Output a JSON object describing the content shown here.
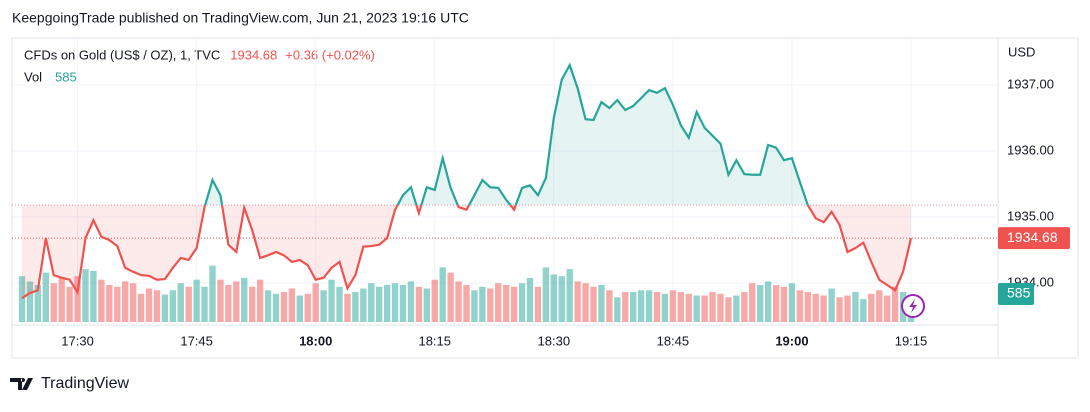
{
  "header": {
    "title": "KeepgoingTrade published on TradingView.com, Jun 21, 2023 19:16 UTC"
  },
  "chart_data": {
    "type": "line",
    "symbol": "CFDs on Gold (US$ / OZ), 1, TVC",
    "change": "+0.36 (+0.02%)",
    "currency": "USD",
    "categories": [
      null,
      null,
      null,
      null,
      null,
      null,
      null,
      "17:30",
      null,
      null,
      null,
      null,
      null,
      null,
      null,
      null,
      null,
      null,
      null,
      null,
      null,
      null,
      "17:45",
      null,
      null,
      null,
      null,
      null,
      null,
      null,
      null,
      null,
      null,
      null,
      null,
      null,
      null,
      "18:00",
      null,
      null,
      null,
      null,
      null,
      null,
      null,
      null,
      null,
      null,
      null,
      null,
      null,
      null,
      "18:15",
      null,
      null,
      null,
      null,
      null,
      null,
      null,
      null,
      null,
      null,
      null,
      null,
      null,
      null,
      "18:30",
      null,
      null,
      null,
      null,
      null,
      null,
      null,
      null,
      null,
      null,
      null,
      null,
      null,
      null,
      "18:45",
      null,
      null,
      null,
      null,
      null,
      null,
      null,
      null,
      null,
      null,
      null,
      null,
      null,
      null,
      "19:00",
      null,
      null,
      null,
      null,
      null,
      null,
      null,
      null,
      null,
      null,
      null,
      null,
      null,
      null,
      "19:15"
    ],
    "series": [
      {
        "name": "CFDs on Gold (US$ / OZ), 1, TVC",
        "color": "#26a69a",
        "down_color": "#ef5350",
        "values": [
          1933.77,
          1933.85,
          1933.89,
          1934.68,
          1934.12,
          1934.08,
          1934.05,
          1933.86,
          1934.68,
          1934.95,
          1934.7,
          1934.65,
          1934.56,
          1934.23,
          1934.17,
          1934.12,
          1934.11,
          1934.05,
          1934.06,
          1934.23,
          1934.38,
          1934.35,
          1934.53,
          1935.15,
          1935.56,
          1935.33,
          1934.58,
          1934.47,
          1935.14,
          1934.8,
          1934.38,
          1934.42,
          1934.47,
          1934.42,
          1934.32,
          1934.35,
          1934.27,
          1934.05,
          1934.08,
          1934.23,
          1934.32,
          1933.92,
          1934.12,
          1934.55,
          1934.56,
          1934.58,
          1934.68,
          1935.11,
          1935.33,
          1935.45,
          1935.06,
          1935.45,
          1935.41,
          1935.89,
          1935.44,
          1935.15,
          1935.11,
          1935.33,
          1935.56,
          1935.45,
          1935.44,
          1935.26,
          1935.11,
          1935.44,
          1935.48,
          1935.33,
          1935.59,
          1936.5,
          1937.08,
          1937.3,
          1936.95,
          1936.48,
          1936.47,
          1936.74,
          1936.65,
          1936.77,
          1936.62,
          1936.68,
          1936.8,
          1936.92,
          1936.88,
          1936.95,
          1936.7,
          1936.39,
          1936.2,
          1936.59,
          1936.35,
          1936.23,
          1936.11,
          1935.64,
          1935.86,
          1935.65,
          1935.64,
          1935.64,
          1936.09,
          1936.05,
          1935.86,
          1935.89,
          1935.53,
          1935.18,
          1934.98,
          1934.92,
          1935.08,
          1934.88,
          1934.47,
          1934.53,
          1934.61,
          1934.32,
          1934.05,
          1933.97,
          1933.89,
          1934.17,
          1934.68
        ]
      },
      {
        "name": "Vol",
        "axis": "y2",
        "color": "#26a69a",
        "down_color": "#ef5350",
        "values": [
          1300,
          1150,
          1050,
          1400,
          1100,
          1250,
          1000,
          1300,
          1500,
          1450,
          1200,
          1050,
          1000,
          1150,
          1100,
          800,
          950,
          900,
          780,
          900,
          1100,
          1000,
          1200,
          1000,
          1600,
          1200,
          1050,
          1150,
          1250,
          1000,
          1200,
          900,
          800,
          850,
          950,
          750,
          800,
          1100,
          900,
          1200,
          1000,
          800,
          850,
          950,
          1100,
          1000,
          1050,
          1100,
          1050,
          1150,
          1000,
          950,
          1200,
          1550,
          1400,
          1150,
          1050,
          900,
          1000,
          950,
          1100,
          1050,
          1000,
          1100,
          1250,
          1000,
          1550,
          1350,
          1300,
          1500,
          1150,
          1100,
          1000,
          1050,
          900,
          700,
          850,
          850,
          900,
          900,
          850,
          800,
          900,
          850,
          800,
          750,
          750,
          850,
          800,
          700,
          750,
          850,
          1100,
          1050,
          1150,
          1050,
          1000,
          1100,
          900,
          850,
          800,
          750,
          950,
          700,
          750,
          850,
          650,
          800,
          900,
          750,
          1000,
          850,
          585
        ]
      }
    ],
    "baseline": 1935.18,
    "ylim": [
      1933.41,
      1937.68
    ],
    "yticks": [
      {
        "value": 1934,
        "label": "1934.00"
      },
      {
        "value": 1935,
        "label": "1935.00"
      },
      {
        "value": 1936,
        "label": "1936.00"
      },
      {
        "value": 1937,
        "label": "1937.00"
      }
    ],
    "y2lim": [
      0,
      8000
    ],
    "grid": true
  },
  "footer": {
    "brand": "TradingView"
  }
}
